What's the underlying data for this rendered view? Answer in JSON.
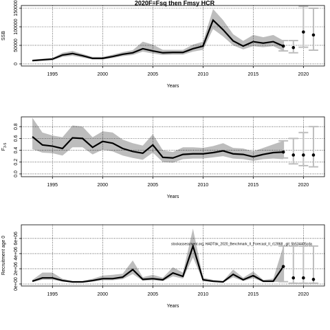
{
  "chart_data": [
    {
      "type": "line",
      "title": "2020F=Fsq then Fmsy HCR",
      "xlabel": "Years",
      "ylabel": "SSB",
      "xlim": [
        1991.9,
        2022.1
      ],
      "xticks": [
        1995,
        2000,
        2005,
        2010,
        2015,
        2020
      ],
      "ylim": [
        -5600,
        157400
      ],
      "yticks": [
        0,
        50000,
        100000,
        150000
      ],
      "grid": true,
      "x": [
        1993,
        1994,
        1995,
        1996,
        1997,
        1998,
        1999,
        2000,
        2001,
        2002,
        2003,
        2004,
        2005,
        2006,
        2007,
        2008,
        2009,
        2010,
        2011,
        2012,
        2013,
        2014,
        2015,
        2016,
        2017,
        2018
      ],
      "values": [
        9000,
        11000,
        13000,
        24000,
        28000,
        22000,
        15000,
        15000,
        20000,
        26000,
        30000,
        41000,
        35000,
        30000,
        31000,
        31000,
        41000,
        48000,
        118000,
        92000,
        62000,
        48000,
        60000,
        56000,
        60000,
        48000
      ],
      "lower": [
        7000,
        8500,
        10000,
        19000,
        22000,
        17000,
        12000,
        12000,
        16000,
        21000,
        24000,
        33000,
        28000,
        24000,
        25000,
        25000,
        33000,
        38000,
        94000,
        74000,
        50000,
        39000,
        48000,
        45000,
        48000,
        35000
      ],
      "upper": [
        11000,
        14000,
        16000,
        30000,
        35000,
        27000,
        19000,
        19000,
        25000,
        32000,
        37000,
        60000,
        52000,
        38000,
        38000,
        38000,
        52000,
        60000,
        148000,
        118000,
        80000,
        62000,
        78000,
        72000,
        78000,
        63000
      ],
      "line_color": "#000000",
      "band_color": "#bdbdbd",
      "bar_color": "#bdbdbd",
      "forecast": {
        "x": [
          2018,
          2019,
          2020,
          2021
        ],
        "values": [
          48000,
          44000,
          86000,
          78000
        ],
        "lower": [
          35000,
          30000,
          45000,
          37000
        ],
        "upper": [
          63000,
          63000,
          155000,
          150000
        ]
      }
    },
    {
      "type": "line",
      "xlabel": "Years",
      "ylabel": "F",
      "ylabel_sub": "3-5",
      "xlim": [
        1991.9,
        2022.1
      ],
      "xticks": [
        1995,
        2000,
        2005,
        2010,
        2015,
        2020
      ],
      "ylim": [
        -0.047,
        0.965
      ],
      "yticks": [
        {
          "value": 0,
          "label": "0.0"
        },
        0.2,
        0.4,
        0.6,
        0.8
      ],
      "grid": true,
      "x": [
        1993,
        1994,
        1995,
        1996,
        1997,
        1998,
        1999,
        2000,
        2001,
        2002,
        2003,
        2004,
        2005,
        2006,
        2007,
        2008,
        2009,
        2010,
        2011,
        2012,
        2013,
        2014,
        2015,
        2016,
        2017,
        2018
      ],
      "values": [
        0.63,
        0.49,
        0.47,
        0.43,
        0.61,
        0.6,
        0.45,
        0.55,
        0.52,
        0.43,
        0.38,
        0.35,
        0.49,
        0.28,
        0.27,
        0.33,
        0.34,
        0.34,
        0.36,
        0.39,
        0.34,
        0.33,
        0.29,
        0.33,
        0.36,
        0.37
      ],
      "lower": [
        0.42,
        0.36,
        0.35,
        0.31,
        0.45,
        0.45,
        0.33,
        0.41,
        0.38,
        0.31,
        0.27,
        0.24,
        0.36,
        0.2,
        0.19,
        0.25,
        0.26,
        0.26,
        0.28,
        0.3,
        0.26,
        0.25,
        0.22,
        0.25,
        0.26,
        0.25
      ],
      "upper": [
        0.95,
        0.7,
        0.65,
        0.62,
        0.82,
        0.8,
        0.62,
        0.72,
        0.7,
        0.58,
        0.52,
        0.48,
        0.67,
        0.4,
        0.37,
        0.45,
        0.45,
        0.44,
        0.47,
        0.52,
        0.44,
        0.43,
        0.38,
        0.44,
        0.5,
        0.56
      ],
      "line_color": "#000000",
      "band_color": "#bdbdbd",
      "bar_color": "#bdbdbd",
      "forecast": {
        "x": [
          2018,
          2019,
          2020,
          2021
        ],
        "values": [
          0.37,
          0.32,
          0.32,
          0.32
        ],
        "lower": [
          0.27,
          0.17,
          0.14,
          0.12
        ],
        "upper": [
          0.56,
          0.6,
          0.7,
          0.8
        ]
      }
    },
    {
      "type": "line",
      "xlabel": "Years",
      "ylabel": "Recruitment age 0",
      "annotation": "stockassessment.org, HADTbk_2020_Benchmark_II_Forecast_II_r12868 , git: 5b534405cda",
      "xlim": [
        1991.9,
        2022.1
      ],
      "xticks": [
        1995,
        2000,
        2005,
        2010,
        2015,
        2020
      ],
      "ylim": [
        -270000,
        7800000
      ],
      "yticks": [
        {
          "value": 0,
          "label": "0e+00"
        },
        {
          "value": 2000000,
          "label": "2e+06"
        },
        {
          "value": 4000000,
          "label": "4e+06"
        },
        {
          "value": 6000000,
          "label": "6e+06"
        }
      ],
      "grid": true,
      "x": [
        1993,
        1994,
        1995,
        1996,
        1997,
        1998,
        1999,
        2000,
        2001,
        2002,
        2003,
        2004,
        2005,
        2006,
        2007,
        2008,
        2009,
        2010,
        2011,
        2012,
        2013,
        2014,
        2015,
        2016,
        2017,
        2018
      ],
      "values": [
        360000,
        800000,
        800000,
        450000,
        270000,
        270000,
        450000,
        700000,
        700000,
        900000,
        1900000,
        600000,
        700000,
        550000,
        1450000,
        1000000,
        5000000,
        550000,
        360000,
        270000,
        1270000,
        550000,
        1100000,
        360000,
        360000,
        2300000
      ],
      "lower": [
        250000,
        560000,
        560000,
        310000,
        190000,
        190000,
        310000,
        490000,
        490000,
        630000,
        1300000,
        420000,
        490000,
        380000,
        1000000,
        700000,
        3500000,
        380000,
        250000,
        190000,
        880000,
        380000,
        770000,
        250000,
        250000,
        300000
      ],
      "upper": [
        540000,
        1500000,
        1500000,
        680000,
        400000,
        400000,
        680000,
        1100000,
        1200000,
        1350000,
        3100000,
        900000,
        1200000,
        830000,
        2200000,
        1500000,
        7300000,
        830000,
        540000,
        400000,
        1900000,
        830000,
        1650000,
        540000,
        700000,
        5000000
      ],
      "line_color": "#000000",
      "band_color": "#bdbdbd",
      "bar_color": "#bdbdbd",
      "forecast": {
        "x": [
          2018,
          2019,
          2020,
          2021
        ],
        "values": [
          2300000,
          800000,
          800000,
          600000
        ],
        "lower": [
          300000,
          100000,
          100000,
          100000
        ],
        "upper": [
          5000000,
          5000000,
          5000000,
          5000000
        ]
      }
    }
  ]
}
